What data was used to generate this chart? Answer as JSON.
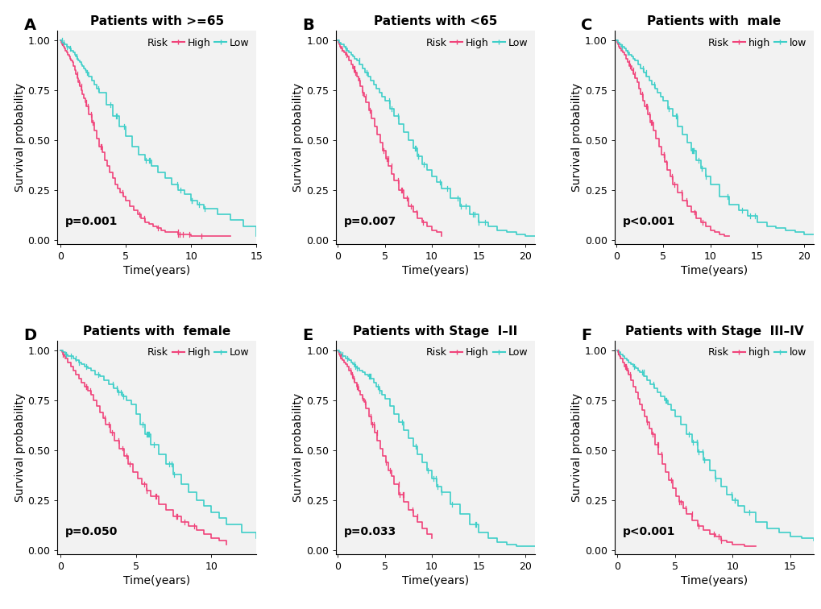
{
  "panels": [
    {
      "label": "A",
      "title": "Patients with >=65",
      "pvalue": "p=0.001",
      "legend_high": "High",
      "legend_low": "Low",
      "xlim": [
        0,
        15
      ],
      "xticks": [
        0,
        5,
        10,
        15
      ],
      "high_x": [
        0,
        0.08,
        0.17,
        0.25,
        0.33,
        0.42,
        0.5,
        0.58,
        0.67,
        0.75,
        0.83,
        0.92,
        1.0,
        1.1,
        1.2,
        1.3,
        1.4,
        1.5,
        1.6,
        1.7,
        1.8,
        1.9,
        2.0,
        2.2,
        2.4,
        2.6,
        2.8,
        3.0,
        3.2,
        3.4,
        3.6,
        3.8,
        4.0,
        4.2,
        4.4,
        4.6,
        4.8,
        5.0,
        5.3,
        5.6,
        5.9,
        6.2,
        6.5,
        6.8,
        7.1,
        7.4,
        7.7,
        8.0,
        8.5,
        9.0,
        9.5,
        10.0,
        10.5,
        11.0,
        13.0
      ],
      "high_y": [
        1.0,
        0.99,
        0.98,
        0.97,
        0.96,
        0.95,
        0.94,
        0.93,
        0.92,
        0.91,
        0.9,
        0.89,
        0.87,
        0.85,
        0.83,
        0.81,
        0.79,
        0.77,
        0.75,
        0.73,
        0.71,
        0.69,
        0.67,
        0.63,
        0.59,
        0.55,
        0.51,
        0.47,
        0.44,
        0.4,
        0.37,
        0.34,
        0.31,
        0.28,
        0.26,
        0.24,
        0.22,
        0.2,
        0.17,
        0.15,
        0.13,
        0.11,
        0.09,
        0.08,
        0.07,
        0.06,
        0.05,
        0.04,
        0.04,
        0.03,
        0.03,
        0.02,
        0.02,
        0.02,
        0.02
      ],
      "low_x": [
        0,
        0.08,
        0.17,
        0.25,
        0.33,
        0.42,
        0.5,
        0.58,
        0.67,
        0.75,
        0.83,
        0.92,
        1.0,
        1.1,
        1.2,
        1.3,
        1.4,
        1.5,
        1.6,
        1.7,
        1.8,
        1.9,
        2.0,
        2.2,
        2.4,
        2.6,
        2.8,
        3.0,
        3.5,
        4.0,
        4.5,
        5.0,
        5.5,
        6.0,
        6.5,
        7.0,
        7.5,
        8.0,
        8.5,
        9.0,
        9.5,
        10.0,
        10.5,
        11.0,
        12.0,
        13.0,
        14.0,
        15.0
      ],
      "low_y": [
        1.0,
        1.0,
        0.99,
        0.99,
        0.98,
        0.98,
        0.97,
        0.97,
        0.96,
        0.96,
        0.95,
        0.95,
        0.94,
        0.93,
        0.92,
        0.91,
        0.9,
        0.89,
        0.88,
        0.87,
        0.86,
        0.85,
        0.84,
        0.82,
        0.8,
        0.78,
        0.76,
        0.74,
        0.68,
        0.62,
        0.57,
        0.52,
        0.47,
        0.43,
        0.4,
        0.37,
        0.34,
        0.31,
        0.28,
        0.25,
        0.23,
        0.2,
        0.18,
        0.16,
        0.13,
        0.1,
        0.07,
        0.02
      ]
    },
    {
      "label": "B",
      "title": "Patients with <65",
      "pvalue": "p=0.007",
      "legend_high": "High",
      "legend_low": "Low",
      "xlim": [
        0,
        21
      ],
      "xticks": [
        0,
        5,
        10,
        15,
        20
      ],
      "high_x": [
        0,
        0.08,
        0.17,
        0.25,
        0.33,
        0.5,
        0.67,
        0.83,
        1.0,
        1.2,
        1.4,
        1.6,
        1.8,
        2.0,
        2.2,
        2.4,
        2.6,
        2.8,
        3.0,
        3.3,
        3.6,
        3.9,
        4.2,
        4.5,
        4.8,
        5.1,
        5.4,
        5.7,
        6.0,
        6.5,
        7.0,
        7.5,
        8.0,
        8.5,
        9.0,
        9.5,
        10.0,
        10.5,
        11.0
      ],
      "high_y": [
        1.0,
        0.99,
        0.98,
        0.97,
        0.96,
        0.95,
        0.94,
        0.93,
        0.92,
        0.9,
        0.88,
        0.86,
        0.84,
        0.82,
        0.8,
        0.77,
        0.74,
        0.72,
        0.69,
        0.65,
        0.61,
        0.57,
        0.53,
        0.49,
        0.45,
        0.41,
        0.37,
        0.33,
        0.3,
        0.25,
        0.21,
        0.17,
        0.14,
        0.11,
        0.09,
        0.07,
        0.05,
        0.04,
        0.02
      ],
      "low_x": [
        0,
        0.08,
        0.17,
        0.25,
        0.33,
        0.5,
        0.67,
        0.83,
        1.0,
        1.2,
        1.4,
        1.6,
        1.8,
        2.0,
        2.3,
        2.6,
        2.9,
        3.2,
        3.5,
        3.8,
        4.1,
        4.4,
        4.7,
        5.0,
        5.5,
        6.0,
        6.5,
        7.0,
        7.5,
        8.0,
        8.5,
        9.0,
        9.5,
        10.0,
        10.5,
        11.0,
        12.0,
        13.0,
        14.0,
        15.0,
        16.0,
        17.0,
        18.0,
        19.0,
        20.0,
        21.0
      ],
      "low_y": [
        1.0,
        1.0,
        0.99,
        0.99,
        0.98,
        0.98,
        0.97,
        0.96,
        0.95,
        0.94,
        0.93,
        0.92,
        0.91,
        0.9,
        0.88,
        0.86,
        0.84,
        0.82,
        0.8,
        0.78,
        0.76,
        0.74,
        0.72,
        0.7,
        0.66,
        0.62,
        0.58,
        0.54,
        0.5,
        0.46,
        0.42,
        0.38,
        0.35,
        0.32,
        0.29,
        0.26,
        0.21,
        0.17,
        0.13,
        0.09,
        0.07,
        0.05,
        0.04,
        0.03,
        0.02,
        0.02
      ]
    },
    {
      "label": "C",
      "title": "Patients with  male",
      "pvalue": "p<0.001",
      "legend_high": "high",
      "legend_low": "low",
      "xlim": [
        0,
        21
      ],
      "xticks": [
        0,
        5,
        10,
        15,
        20
      ],
      "high_x": [
        0,
        0.08,
        0.17,
        0.25,
        0.33,
        0.5,
        0.67,
        0.83,
        1.0,
        1.2,
        1.4,
        1.6,
        1.8,
        2.0,
        2.2,
        2.4,
        2.6,
        2.8,
        3.0,
        3.3,
        3.6,
        3.9,
        4.2,
        4.5,
        4.8,
        5.1,
        5.4,
        5.7,
        6.0,
        6.5,
        7.0,
        7.5,
        8.0,
        8.5,
        9.0,
        9.5,
        10.0,
        10.5,
        11.0,
        11.5,
        12.0
      ],
      "high_y": [
        1.0,
        0.99,
        0.98,
        0.97,
        0.96,
        0.95,
        0.94,
        0.93,
        0.91,
        0.89,
        0.87,
        0.85,
        0.83,
        0.81,
        0.79,
        0.76,
        0.73,
        0.7,
        0.67,
        0.63,
        0.59,
        0.55,
        0.51,
        0.47,
        0.43,
        0.39,
        0.35,
        0.32,
        0.28,
        0.24,
        0.2,
        0.17,
        0.14,
        0.11,
        0.09,
        0.07,
        0.05,
        0.04,
        0.03,
        0.02,
        0.02
      ],
      "low_x": [
        0,
        0.08,
        0.17,
        0.25,
        0.33,
        0.5,
        0.67,
        0.83,
        1.0,
        1.2,
        1.4,
        1.6,
        1.8,
        2.0,
        2.3,
        2.6,
        2.9,
        3.2,
        3.5,
        3.8,
        4.1,
        4.4,
        4.7,
        5.0,
        5.5,
        6.0,
        6.5,
        7.0,
        7.5,
        8.0,
        8.5,
        9.0,
        9.5,
        10.0,
        11.0,
        12.0,
        13.0,
        14.0,
        15.0,
        16.0,
        17.0,
        18.0,
        19.0,
        20.0,
        21.0
      ],
      "low_y": [
        1.0,
        1.0,
        0.99,
        0.99,
        0.98,
        0.97,
        0.97,
        0.96,
        0.95,
        0.94,
        0.93,
        0.92,
        0.91,
        0.9,
        0.88,
        0.86,
        0.84,
        0.82,
        0.8,
        0.78,
        0.76,
        0.74,
        0.72,
        0.7,
        0.66,
        0.62,
        0.57,
        0.53,
        0.49,
        0.45,
        0.4,
        0.36,
        0.32,
        0.28,
        0.22,
        0.18,
        0.15,
        0.12,
        0.09,
        0.07,
        0.06,
        0.05,
        0.04,
        0.03,
        0.03
      ]
    },
    {
      "label": "D",
      "title": "Patients with  female",
      "pvalue": "p=0.050",
      "legend_high": "High",
      "legend_low": "Low",
      "xlim": [
        0,
        13
      ],
      "xticks": [
        0,
        5,
        10
      ],
      "high_x": [
        0,
        0.08,
        0.17,
        0.25,
        0.33,
        0.5,
        0.67,
        0.83,
        1.0,
        1.2,
        1.4,
        1.6,
        1.8,
        2.0,
        2.2,
        2.4,
        2.6,
        2.8,
        3.0,
        3.3,
        3.6,
        3.9,
        4.2,
        4.5,
        4.8,
        5.1,
        5.4,
        5.7,
        6.0,
        6.5,
        7.0,
        7.5,
        8.0,
        8.5,
        9.0,
        9.5,
        10.0,
        10.5,
        11.0
      ],
      "high_y": [
        1.0,
        0.99,
        0.98,
        0.97,
        0.96,
        0.94,
        0.92,
        0.9,
        0.88,
        0.86,
        0.84,
        0.82,
        0.8,
        0.78,
        0.75,
        0.72,
        0.69,
        0.66,
        0.63,
        0.59,
        0.55,
        0.51,
        0.47,
        0.43,
        0.39,
        0.36,
        0.33,
        0.3,
        0.27,
        0.23,
        0.2,
        0.17,
        0.14,
        0.12,
        0.1,
        0.08,
        0.06,
        0.05,
        0.03
      ],
      "low_x": [
        0,
        0.08,
        0.17,
        0.25,
        0.33,
        0.5,
        0.67,
        0.83,
        1.0,
        1.2,
        1.4,
        1.6,
        1.8,
        2.0,
        2.3,
        2.6,
        2.9,
        3.2,
        3.5,
        3.8,
        4.1,
        4.4,
        4.7,
        5.0,
        5.3,
        5.6,
        6.0,
        6.5,
        7.0,
        7.5,
        8.0,
        8.5,
        9.0,
        9.5,
        10.0,
        10.5,
        11.0,
        12.0,
        13.0
      ],
      "low_y": [
        1.0,
        1.0,
        0.99,
        0.99,
        0.98,
        0.97,
        0.97,
        0.96,
        0.95,
        0.94,
        0.93,
        0.92,
        0.91,
        0.9,
        0.88,
        0.87,
        0.85,
        0.83,
        0.81,
        0.79,
        0.77,
        0.75,
        0.73,
        0.68,
        0.63,
        0.58,
        0.53,
        0.48,
        0.43,
        0.38,
        0.33,
        0.29,
        0.25,
        0.22,
        0.19,
        0.16,
        0.13,
        0.09,
        0.06
      ]
    },
    {
      "label": "E",
      "title": "Patients with Stage  I–II",
      "pvalue": "p=0.033",
      "legend_high": "High",
      "legend_low": "Low",
      "xlim": [
        0,
        21
      ],
      "xticks": [
        0,
        5,
        10,
        15,
        20
      ],
      "high_x": [
        0,
        0.08,
        0.17,
        0.25,
        0.33,
        0.5,
        0.67,
        0.83,
        1.0,
        1.2,
        1.4,
        1.6,
        1.8,
        2.0,
        2.2,
        2.4,
        2.6,
        2.8,
        3.0,
        3.3,
        3.6,
        3.9,
        4.2,
        4.5,
        4.8,
        5.1,
        5.4,
        5.7,
        6.0,
        6.5,
        7.0,
        7.5,
        8.0,
        8.5,
        9.0,
        9.5,
        10.0
      ],
      "high_y": [
        1.0,
        0.99,
        0.98,
        0.97,
        0.96,
        0.95,
        0.94,
        0.93,
        0.92,
        0.9,
        0.88,
        0.86,
        0.84,
        0.82,
        0.8,
        0.78,
        0.76,
        0.74,
        0.71,
        0.67,
        0.63,
        0.59,
        0.55,
        0.51,
        0.47,
        0.44,
        0.4,
        0.37,
        0.33,
        0.28,
        0.24,
        0.2,
        0.17,
        0.14,
        0.11,
        0.08,
        0.06
      ],
      "low_x": [
        0,
        0.08,
        0.17,
        0.25,
        0.33,
        0.5,
        0.67,
        0.83,
        1.0,
        1.2,
        1.4,
        1.6,
        1.8,
        2.0,
        2.3,
        2.6,
        2.9,
        3.2,
        3.5,
        3.8,
        4.1,
        4.4,
        4.7,
        5.0,
        5.5,
        6.0,
        6.5,
        7.0,
        7.5,
        8.0,
        8.5,
        9.0,
        9.5,
        10.0,
        10.5,
        11.0,
        12.0,
        13.0,
        14.0,
        15.0,
        16.0,
        17.0,
        18.0,
        19.0,
        20.0,
        21.0
      ],
      "low_y": [
        1.0,
        1.0,
        0.99,
        0.99,
        0.98,
        0.97,
        0.97,
        0.96,
        0.96,
        0.95,
        0.94,
        0.93,
        0.92,
        0.91,
        0.9,
        0.89,
        0.88,
        0.87,
        0.86,
        0.84,
        0.82,
        0.8,
        0.78,
        0.76,
        0.72,
        0.68,
        0.64,
        0.6,
        0.56,
        0.52,
        0.48,
        0.44,
        0.4,
        0.36,
        0.32,
        0.29,
        0.23,
        0.18,
        0.13,
        0.09,
        0.06,
        0.04,
        0.03,
        0.02,
        0.02,
        0.02
      ]
    },
    {
      "label": "F",
      "title": "Patients with Stage  III–IV",
      "pvalue": "p<0.001",
      "legend_high": "high",
      "legend_low": "low",
      "xlim": [
        0,
        17
      ],
      "xticks": [
        0,
        5,
        10,
        15
      ],
      "high_x": [
        0,
        0.08,
        0.17,
        0.25,
        0.33,
        0.5,
        0.67,
        0.83,
        1.0,
        1.2,
        1.4,
        1.6,
        1.8,
        2.0,
        2.2,
        2.4,
        2.6,
        2.8,
        3.0,
        3.3,
        3.6,
        3.9,
        4.2,
        4.5,
        4.8,
        5.1,
        5.4,
        5.7,
        6.0,
        6.5,
        7.0,
        7.5,
        8.0,
        8.5,
        9.0,
        9.5,
        10.0,
        10.5,
        11.0,
        11.5,
        12.0
      ],
      "high_y": [
        1.0,
        0.99,
        0.98,
        0.97,
        0.96,
        0.94,
        0.92,
        0.9,
        0.88,
        0.85,
        0.82,
        0.79,
        0.76,
        0.73,
        0.7,
        0.67,
        0.64,
        0.61,
        0.58,
        0.53,
        0.48,
        0.43,
        0.39,
        0.35,
        0.31,
        0.27,
        0.24,
        0.21,
        0.18,
        0.15,
        0.12,
        0.1,
        0.08,
        0.07,
        0.05,
        0.04,
        0.03,
        0.03,
        0.02,
        0.02,
        0.02
      ],
      "low_x": [
        0,
        0.08,
        0.17,
        0.25,
        0.33,
        0.5,
        0.67,
        0.83,
        1.0,
        1.2,
        1.4,
        1.6,
        1.8,
        2.0,
        2.3,
        2.6,
        2.9,
        3.2,
        3.5,
        3.8,
        4.1,
        4.4,
        4.7,
        5.0,
        5.5,
        6.0,
        6.5,
        7.0,
        7.5,
        8.0,
        8.5,
        9.0,
        9.5,
        10.0,
        10.5,
        11.0,
        12.0,
        13.0,
        14.0,
        15.0,
        16.0,
        17.0
      ],
      "low_y": [
        1.0,
        1.0,
        0.99,
        0.99,
        0.98,
        0.97,
        0.96,
        0.95,
        0.94,
        0.93,
        0.92,
        0.91,
        0.9,
        0.89,
        0.87,
        0.85,
        0.83,
        0.81,
        0.79,
        0.77,
        0.75,
        0.73,
        0.7,
        0.67,
        0.63,
        0.58,
        0.54,
        0.49,
        0.45,
        0.4,
        0.36,
        0.32,
        0.28,
        0.25,
        0.22,
        0.19,
        0.14,
        0.11,
        0.09,
        0.07,
        0.06,
        0.05
      ]
    }
  ],
  "high_color": "#F0437A",
  "low_color": "#3ECFC9",
  "background_color": "#FFFFFF",
  "plot_bg_color": "#F2F2F2",
  "ylabel": "Survival probability",
  "xlabel": "Time(years)",
  "ylim": [
    -0.02,
    1.05
  ],
  "yticks": [
    0.0,
    0.25,
    0.5,
    0.75,
    1.0
  ],
  "title_fontsize": 11,
  "label_fontsize": 14,
  "axis_fontsize": 9,
  "pval_fontsize": 10,
  "legend_fontsize": 9,
  "linewidth": 1.2
}
